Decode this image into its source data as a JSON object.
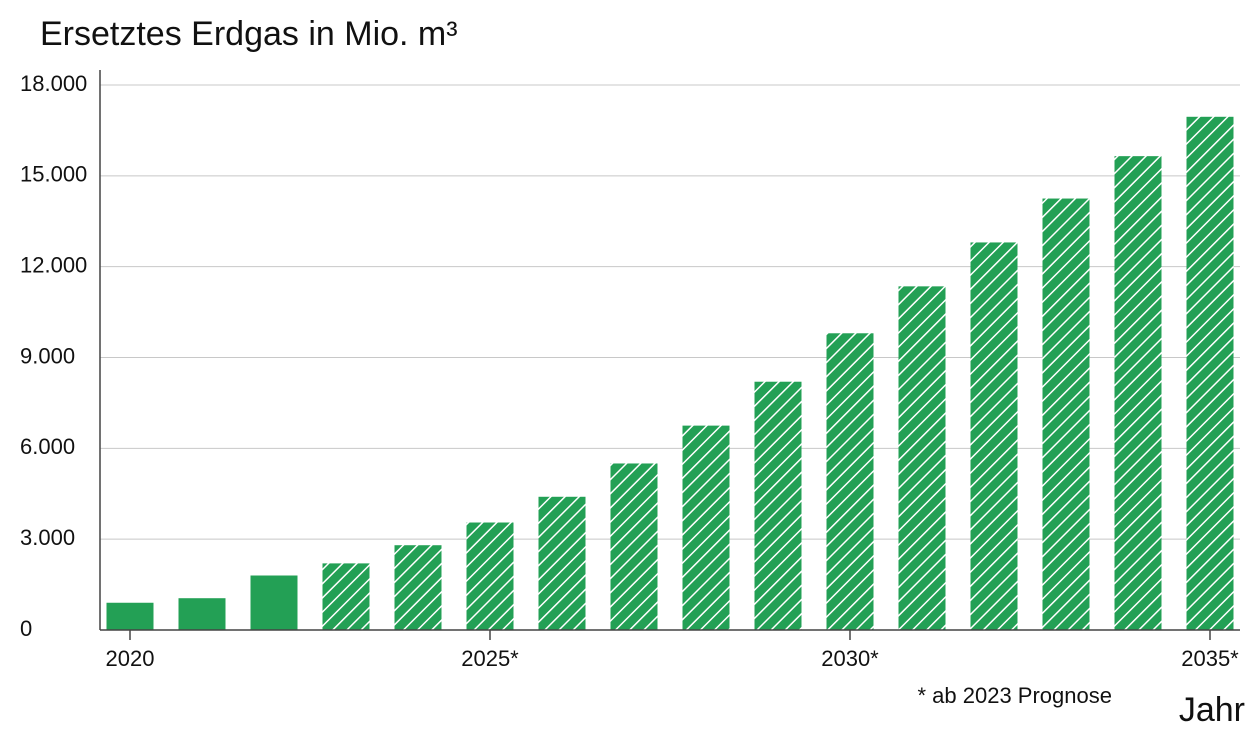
{
  "chart_data": {
    "type": "bar",
    "title": "Ersetztes Erdgas in Mio. m³",
    "x_label": "Jahr",
    "annotation": "* ab 2023 Prognose",
    "categories": [
      "2020",
      null,
      null,
      null,
      null,
      "2025*",
      null,
      null,
      null,
      null,
      "2030*",
      null,
      null,
      null,
      null,
      "2035*"
    ],
    "values": [
      900,
      1050,
      1800,
      2200,
      2800,
      3550,
      4400,
      5500,
      6750,
      8200,
      9800,
      11350,
      12800,
      14250,
      15650,
      16950
    ],
    "hatched": [
      false,
      false,
      false,
      true,
      true,
      true,
      true,
      true,
      true,
      true,
      true,
      true,
      true,
      true,
      true,
      true
    ],
    "color": "#23a055",
    "ylim": [
      0,
      18000
    ],
    "yticks": [
      0,
      {
        "value": 3000,
        "label": "3.000"
      },
      {
        "value": 6000,
        "label": "6.000"
      },
      {
        "value": 9000,
        "label": "9.000"
      },
      {
        "value": 12000,
        "label": "12.000"
      },
      {
        "value": 15000,
        "label": "15.000"
      },
      {
        "value": 18000,
        "label": "18.000"
      }
    ],
    "grid": true
  }
}
